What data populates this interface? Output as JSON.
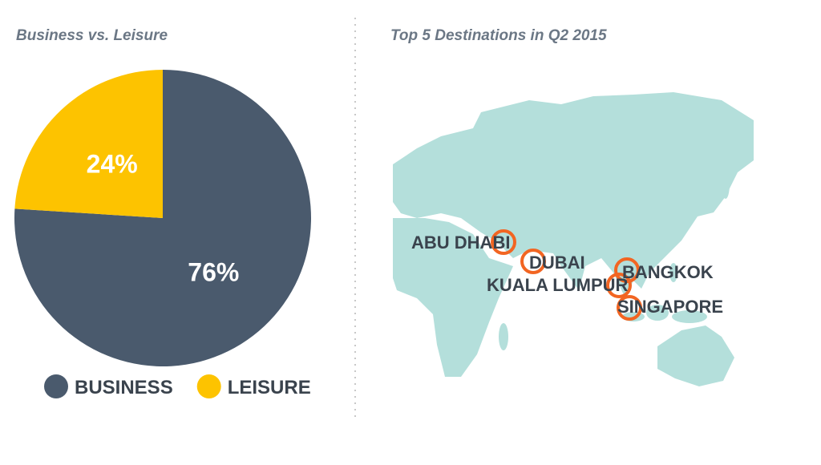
{
  "chart_data": {
    "type": "pie",
    "title": "Business vs. Leisure",
    "categories": [
      "BUSINESS",
      "LEISURE"
    ],
    "values": [
      76,
      24
    ],
    "value_labels": [
      "76%",
      "24%"
    ],
    "colors": [
      "#4a5a6d",
      "#fdc300"
    ]
  },
  "map": {
    "title": "Top 5 Destinations in Q2 2015",
    "destinations": [
      "ABU DHABI",
      "DUBAI",
      "KUALA LUMPUR",
      "BANGKOK",
      "SINGAPORE"
    ]
  }
}
